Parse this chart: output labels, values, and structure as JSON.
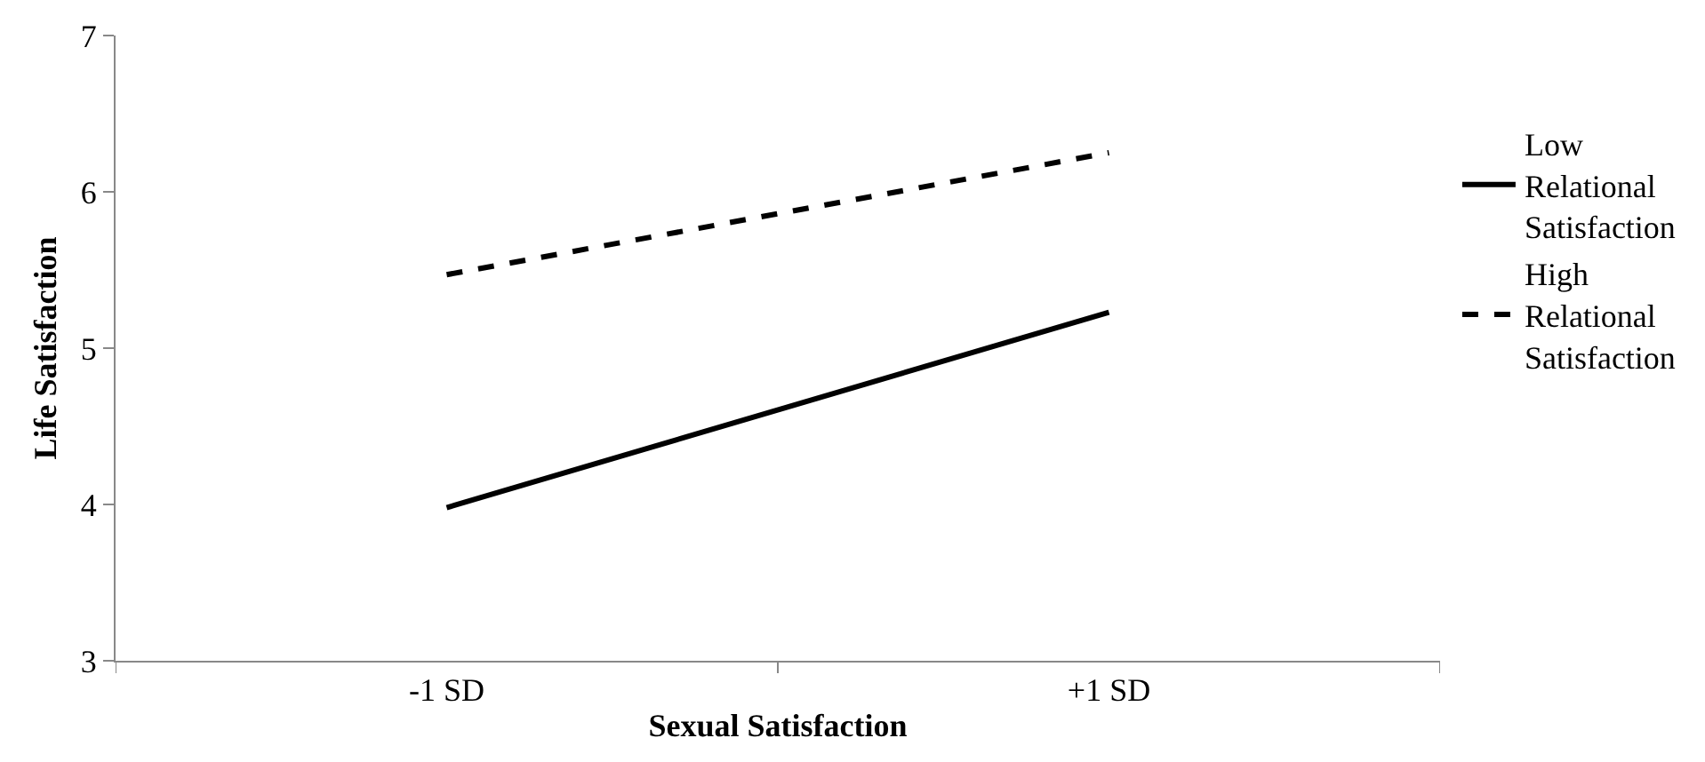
{
  "chart_data": {
    "type": "line",
    "xlabel": "Sexual Satisfaction",
    "ylabel": "Life Satisfaction",
    "categories": [
      "-1 SD",
      "+1 SD"
    ],
    "series": [
      {
        "name": "Low Relational Satisfaction",
        "color": "#000000",
        "line_style": "solid",
        "values": [
          3.98,
          5.23
        ]
      },
      {
        "name": "High Relational Satisfaction",
        "color": "#000000",
        "line_style": "dashed",
        "values": [
          5.47,
          6.25
        ]
      }
    ],
    "ylim": [
      3,
      7
    ],
    "yticks": [
      3,
      4,
      5,
      6,
      7
    ],
    "grid": false,
    "legend": "right",
    "marker": "none"
  }
}
